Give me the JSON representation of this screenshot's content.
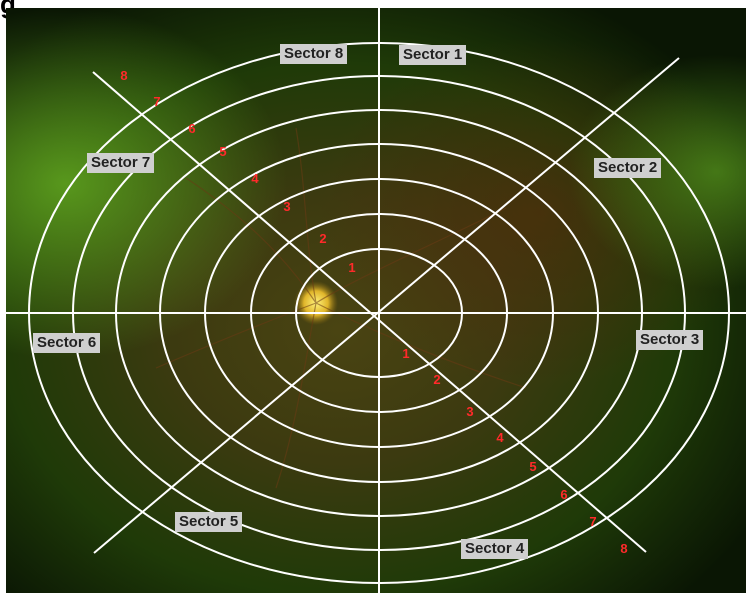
{
  "figure": {
    "panel_letter": "g"
  },
  "colors": {
    "grid_lines": "#ffffff",
    "ring_numbers": "#ff2a2a",
    "label_background": "#cfcfcf",
    "label_text": "#222222",
    "fundus_green": "#3f7a10",
    "fundus_brown": "#5a3a12",
    "optic_disc": "#f2d23a"
  },
  "sectors": [
    {
      "id": "1",
      "label": "Sector 1"
    },
    {
      "id": "2",
      "label": "Sector 2"
    },
    {
      "id": "3",
      "label": "Sector 3"
    },
    {
      "id": "4",
      "label": "Sector 4"
    },
    {
      "id": "5",
      "label": "Sector 5"
    },
    {
      "id": "6",
      "label": "Sector 6"
    },
    {
      "id": "7",
      "label": "Sector 7"
    },
    {
      "id": "8",
      "label": "Sector 8"
    }
  ],
  "rings": {
    "upper_left_diagonal": [
      "1",
      "2",
      "3",
      "4",
      "5",
      "6",
      "7",
      "8"
    ],
    "lower_right_diagonal": [
      "1",
      "2",
      "3",
      "4",
      "5",
      "6",
      "7",
      "8"
    ]
  }
}
